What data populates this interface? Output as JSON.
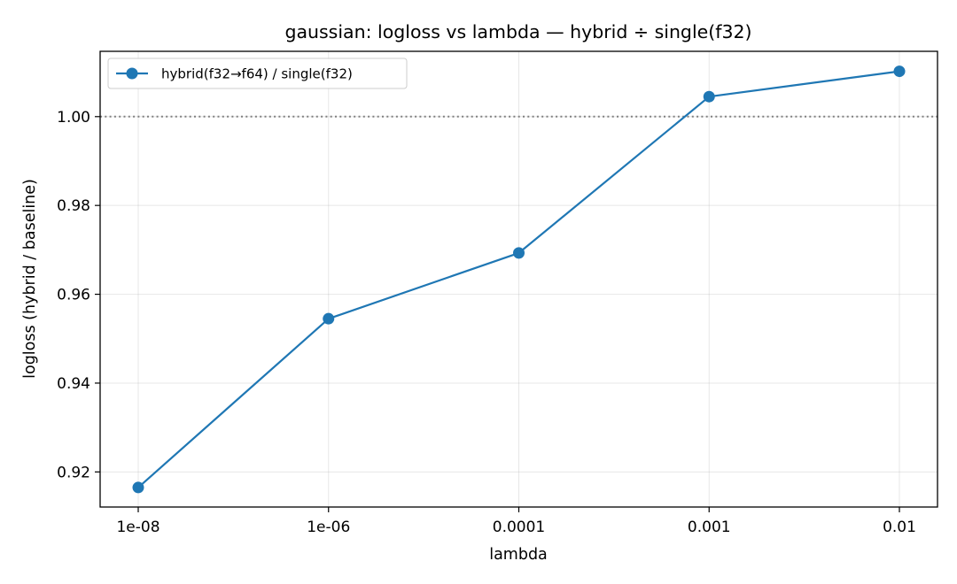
{
  "chart_data": {
    "type": "line",
    "title": "gaussian: logloss vs lambda — hybrid ÷ single(f32)",
    "xlabel": "lambda",
    "ylabel": "logloss (hybrid / baseline)",
    "categories": [
      "1e-08",
      "1e-06",
      "0.0001",
      "0.001",
      "0.01"
    ],
    "series": [
      {
        "name": "hybrid(f32→f64) / single(f32)",
        "color": "#1f77b4",
        "values": [
          0.9165,
          0.9545,
          0.9693,
          1.0045,
          1.0102
        ]
      }
    ],
    "ylim": [
      0.9121,
      1.0147
    ],
    "yticks": [
      0.92,
      0.94,
      0.96,
      0.98,
      1.0
    ],
    "ytick_labels": [
      "0.92",
      "0.94",
      "0.96",
      "0.98",
      "1.00"
    ],
    "reference_line": {
      "y": 1.0,
      "style": "dotted",
      "color": "#808080"
    },
    "grid": true,
    "legend_position": "top-left"
  }
}
